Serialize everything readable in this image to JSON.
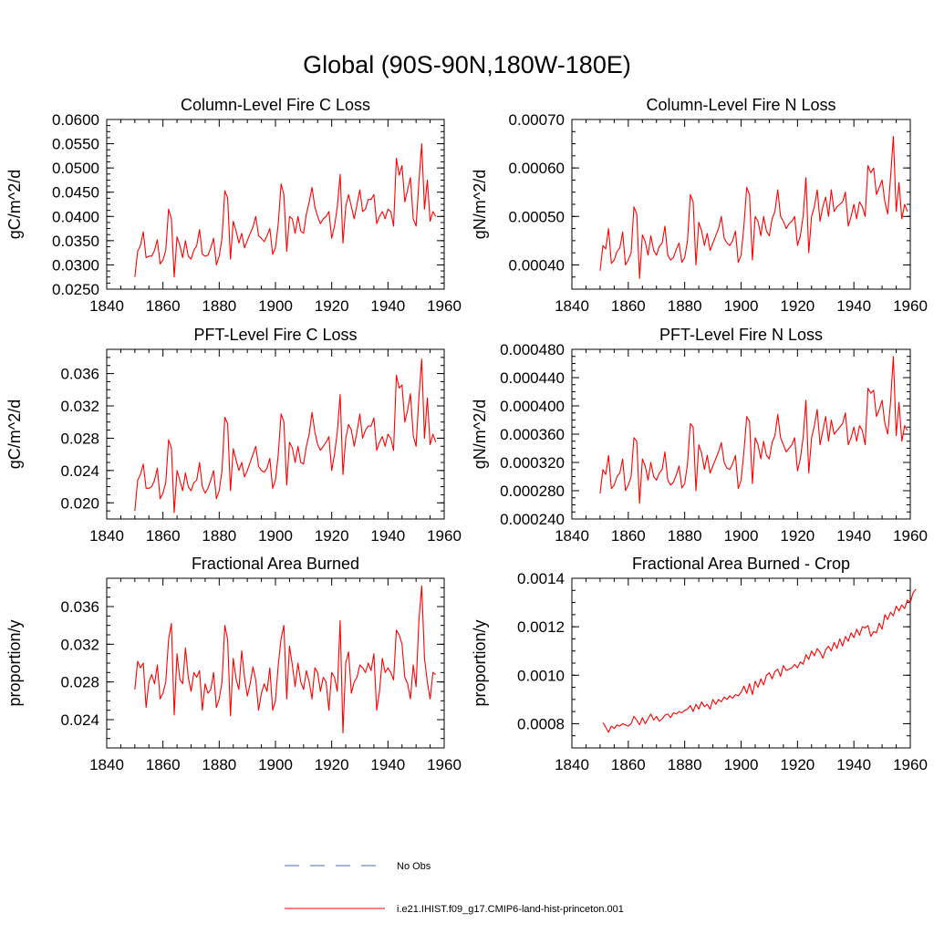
{
  "title": "Global (90S-90N,180W-180E)",
  "colors": {
    "series": "#ff0000",
    "obs": "#4a6ab8",
    "axis": "#000000"
  },
  "legend": [
    {
      "label": "No Obs",
      "style": "dashed",
      "color": "#4a6ab8"
    },
    {
      "label": "i.e21.IHIST.f09_g17.CMIP6-land-hist-princeton.001",
      "style": "solid",
      "color": "#ff0000"
    }
  ],
  "chart_data": [
    {
      "type": "line",
      "title": "Column-Level Fire C Loss",
      "ylabel": "gC/m^2/d",
      "xlim": [
        1840,
        1960
      ],
      "ylim": [
        0.025,
        0.06
      ],
      "xticks": [
        "1840",
        "1860",
        "1880",
        "1900",
        "1920",
        "1940",
        "1960"
      ],
      "yticks": [
        "0.0250",
        "0.0300",
        "0.0350",
        "0.0400",
        "0.0450",
        "0.0500",
        "0.0550",
        "0.0600"
      ],
      "x_start": 1850,
      "series": [
        {
          "values": [
            0.0275,
            0.0328,
            0.034,
            0.0368,
            0.0315,
            0.0318,
            0.0318,
            0.033,
            0.0352,
            0.0302,
            0.031,
            0.033,
            0.0415,
            0.0395,
            0.0275,
            0.0358,
            0.034,
            0.0315,
            0.035,
            0.0318,
            0.0312,
            0.033,
            0.034,
            0.0373,
            0.0322,
            0.0318,
            0.032,
            0.0335,
            0.0355,
            0.03,
            0.0318,
            0.0355,
            0.0453,
            0.0438,
            0.0312,
            0.039,
            0.037,
            0.0345,
            0.0365,
            0.0335,
            0.035,
            0.0365,
            0.0378,
            0.04,
            0.036,
            0.0355,
            0.0348,
            0.036,
            0.0375,
            0.0322,
            0.0335,
            0.0385,
            0.0467,
            0.0445,
            0.0328,
            0.04,
            0.0395,
            0.0365,
            0.04,
            0.037,
            0.0365,
            0.0405,
            0.043,
            0.046,
            0.042,
            0.04,
            0.0385,
            0.0395,
            0.04,
            0.041,
            0.0355,
            0.038,
            0.042,
            0.0487,
            0.0345,
            0.042,
            0.0445,
            0.042,
            0.0395,
            0.0425,
            0.0455,
            0.041,
            0.0415,
            0.0435,
            0.0435,
            0.0445,
            0.0385,
            0.04,
            0.041,
            0.0395,
            0.0415,
            0.041,
            0.038,
            0.052,
            0.0485,
            0.0505,
            0.043,
            0.0455,
            0.048,
            0.0395,
            0.038,
            0.047,
            0.055,
            0.0415,
            0.0475,
            0.039,
            0.041,
            0.04
          ]
        }
      ]
    },
    {
      "type": "line",
      "title": "Column-Level Fire N Loss",
      "ylabel": "gN/m^2/d",
      "xlim": [
        1840,
        1960
      ],
      "ylim": [
        0.00035,
        0.0007
      ],
      "xticks": [
        "1840",
        "1860",
        "1880",
        "1900",
        "1920",
        "1940",
        "1960"
      ],
      "yticks": [
        "0.00040",
        "0.00050",
        "0.00060",
        "0.00070"
      ],
      "x_start": 1850,
      "series": [
        {
          "values": [
            0.000388,
            0.00044,
            0.000433,
            0.000475,
            0.000403,
            0.00041,
            0.000428,
            0.000435,
            0.000468,
            0.0004,
            0.00041,
            0.000425,
            0.00052,
            0.000505,
            0.000372,
            0.000462,
            0.000448,
            0.00042,
            0.00046,
            0.00043,
            0.00042,
            0.000438,
            0.000445,
            0.00048,
            0.00042,
            0.00041,
            0.000415,
            0.000432,
            0.000445,
            0.000405,
            0.000415,
            0.00045,
            0.000545,
            0.00053,
            0.0004,
            0.000488,
            0.00047,
            0.00044,
            0.000465,
            0.00043,
            0.000445,
            0.00046,
            0.000475,
            0.0005,
            0.000455,
            0.000445,
            0.00044,
            0.00045,
            0.00047,
            0.000405,
            0.00042,
            0.00048,
            0.00056,
            0.000545,
            0.00041,
            0.0005,
            0.00049,
            0.00046,
            0.0005,
            0.00047,
            0.00046,
            0.000495,
            0.00051,
            0.000555,
            0.0005,
            0.00049,
            0.000475,
            0.000485,
            0.00049,
            0.0005,
            0.00044,
            0.00046,
            0.0005,
            0.00058,
            0.000425,
            0.0005,
            0.00052,
            0.000555,
            0.00049,
            0.00052,
            0.00054,
            0.0005,
            0.000555,
            0.00051,
            0.00052,
            0.000525,
            0.00053,
            0.00055,
            0.00048,
            0.0005,
            0.000525,
            0.000495,
            0.00053,
            0.00052,
            0.0005,
            0.000605,
            0.00059,
            0.0006,
            0.000545,
            0.00056,
            0.000575,
            0.00053,
            0.000505,
            0.00058,
            0.000665,
            0.00051,
            0.00057,
            0.000495,
            0.000525,
            0.00051
          ]
        }
      ]
    },
    {
      "type": "line",
      "title": "PFT-Level Fire C Loss",
      "ylabel": "gC/m^2/d",
      "xlim": [
        1840,
        1960
      ],
      "ylim": [
        0.018,
        0.039
      ],
      "xticks": [
        "1840",
        "1860",
        "1880",
        "1900",
        "1920",
        "1940",
        "1960"
      ],
      "yticks": [
        "0.020",
        "0.024",
        "0.028",
        "0.032",
        "0.036"
      ],
      "x_start": 1850,
      "series": [
        {
          "values": [
            0.019,
            0.0228,
            0.0235,
            0.0248,
            0.0218,
            0.0218,
            0.022,
            0.0228,
            0.0243,
            0.0205,
            0.0212,
            0.0225,
            0.0278,
            0.0268,
            0.0188,
            0.024,
            0.0228,
            0.0215,
            0.0237,
            0.022,
            0.0215,
            0.0225,
            0.0228,
            0.025,
            0.022,
            0.0212,
            0.0218,
            0.0228,
            0.024,
            0.0205,
            0.0215,
            0.024,
            0.0306,
            0.0298,
            0.0215,
            0.0267,
            0.0253,
            0.024,
            0.025,
            0.0232,
            0.024,
            0.025,
            0.026,
            0.027,
            0.0245,
            0.024,
            0.0238,
            0.0243,
            0.0255,
            0.0218,
            0.0228,
            0.026,
            0.031,
            0.03,
            0.0222,
            0.0275,
            0.0268,
            0.025,
            0.027,
            0.025,
            0.0248,
            0.027,
            0.0285,
            0.0312,
            0.0288,
            0.0272,
            0.0265,
            0.027,
            0.0275,
            0.0282,
            0.024,
            0.026,
            0.0288,
            0.0334,
            0.0235,
            0.028,
            0.0297,
            0.029,
            0.027,
            0.0288,
            0.031,
            0.028,
            0.029,
            0.0295,
            0.0295,
            0.0305,
            0.0265,
            0.0275,
            0.0282,
            0.027,
            0.0285,
            0.028,
            0.0265,
            0.0358,
            0.0342,
            0.0346,
            0.03,
            0.0315,
            0.0335,
            0.0283,
            0.027,
            0.033,
            0.0378,
            0.028,
            0.033,
            0.0272,
            0.0285,
            0.0275
          ]
        }
      ]
    },
    {
      "type": "line",
      "title": "PFT-Level Fire N Loss",
      "ylabel": "gN/m^2/d",
      "xlim": [
        1840,
        1960
      ],
      "ylim": [
        0.00024,
        0.00048
      ],
      "xticks": [
        "1840",
        "1860",
        "1880",
        "1900",
        "1920",
        "1940",
        "1960"
      ],
      "yticks": [
        "0.000240",
        "0.000280",
        "0.000320",
        "0.000360",
        "0.000400",
        "0.000440",
        "0.000480"
      ],
      "x_start": 1850,
      "series": [
        {
          "values": [
            0.000276,
            0.00031,
            0.000303,
            0.00033,
            0.000283,
            0.000288,
            0.0003,
            0.000305,
            0.000325,
            0.00028,
            0.000288,
            0.0003,
            0.000355,
            0.00035,
            0.000262,
            0.000325,
            0.000315,
            0.000295,
            0.00032,
            0.0003,
            0.000295,
            0.000305,
            0.00031,
            0.000335,
            0.000295,
            0.000288,
            0.000292,
            0.000302,
            0.000315,
            0.000284,
            0.00029,
            0.000318,
            0.000375,
            0.00037,
            0.00028,
            0.000345,
            0.000333,
            0.00031,
            0.00033,
            0.000305,
            0.000315,
            0.000325,
            0.000335,
            0.000348,
            0.00032,
            0.000312,
            0.00031,
            0.000318,
            0.00033,
            0.000283,
            0.000295,
            0.000335,
            0.000385,
            0.000378,
            0.00029,
            0.000355,
            0.000345,
            0.000325,
            0.00035,
            0.00033,
            0.000325,
            0.000348,
            0.000358,
            0.000388,
            0.000355,
            0.000345,
            0.000335,
            0.00034,
            0.000345,
            0.000355,
            0.000308,
            0.000325,
            0.000355,
            0.000408,
            0.000305,
            0.000355,
            0.000372,
            0.000395,
            0.000345,
            0.000365,
            0.000385,
            0.00035,
            0.00038,
            0.00036,
            0.000365,
            0.00037,
            0.000375,
            0.00039,
            0.000345,
            0.000355,
            0.00037,
            0.00035,
            0.000372,
            0.000365,
            0.000345,
            0.000425,
            0.000418,
            0.000422,
            0.000385,
            0.000395,
            0.000408,
            0.000375,
            0.00036,
            0.000405,
            0.00047,
            0.000358,
            0.000405,
            0.00035,
            0.000372,
            0.000365
          ]
        }
      ]
    },
    {
      "type": "line",
      "title": "Fractional Area Burned",
      "ylabel": "proportion/y",
      "xlim": [
        1840,
        1960
      ],
      "ylim": [
        0.021,
        0.039
      ],
      "xticks": [
        "1840",
        "1860",
        "1880",
        "1900",
        "1920",
        "1940",
        "1960"
      ],
      "yticks": [
        "0.024",
        "0.028",
        "0.032",
        "0.036"
      ],
      "x_start": 1850,
      "series": [
        {
          "values": [
            0.0272,
            0.0302,
            0.0295,
            0.03,
            0.0253,
            0.028,
            0.0288,
            0.0278,
            0.0298,
            0.0262,
            0.0268,
            0.028,
            0.0325,
            0.0342,
            0.0245,
            0.031,
            0.0283,
            0.0278,
            0.0316,
            0.0285,
            0.027,
            0.029,
            0.0285,
            0.0292,
            0.025,
            0.0278,
            0.0268,
            0.0272,
            0.029,
            0.0253,
            0.0262,
            0.028,
            0.034,
            0.0325,
            0.0244,
            0.0305,
            0.0283,
            0.0272,
            0.0313,
            0.0285,
            0.0265,
            0.0278,
            0.0296,
            0.0282,
            0.025,
            0.0268,
            0.0278,
            0.027,
            0.0295,
            0.025,
            0.026,
            0.0298,
            0.0326,
            0.034,
            0.0262,
            0.0318,
            0.0298,
            0.0275,
            0.03,
            0.028,
            0.0272,
            0.0292,
            0.028,
            0.0262,
            0.0295,
            0.029,
            0.027,
            0.0285,
            0.028,
            0.025,
            0.029,
            0.0285,
            0.027,
            0.0345,
            0.0226,
            0.03,
            0.0312,
            0.0268,
            0.028,
            0.0285,
            0.0298,
            0.0295,
            0.029,
            0.03,
            0.0292,
            0.031,
            0.025,
            0.027,
            0.0305,
            0.029,
            0.0295,
            0.029,
            0.0282,
            0.0335,
            0.033,
            0.032,
            0.0285,
            0.0278,
            0.0262,
            0.0298,
            0.0275,
            0.0345,
            0.0382,
            0.0305,
            0.028,
            0.0262,
            0.029,
            0.0288
          ]
        }
      ]
    },
    {
      "type": "line",
      "title": "Fractional Area Burned - Crop",
      "ylabel": "proportion/y",
      "xlim": [
        1840,
        1960
      ],
      "ylim": [
        0.0007,
        0.0014
      ],
      "xticks": [
        "1840",
        "1860",
        "1880",
        "1900",
        "1920",
        "1940",
        "1960"
      ],
      "yticks": [
        "0.0008",
        "0.0010",
        "0.0012",
        "0.0014"
      ],
      "x_start": 1851,
      "series": [
        {
          "values": [
            0.000805,
            0.000785,
            0.000765,
            0.00079,
            0.00078,
            0.000795,
            0.00079,
            0.0008,
            0.000795,
            0.00079,
            0.0008,
            0.00083,
            0.000815,
            0.000795,
            0.000825,
            0.0008,
            0.00082,
            0.00084,
            0.000815,
            0.00083,
            0.00081,
            0.00082,
            0.000835,
            0.00084,
            0.000825,
            0.000845,
            0.00084,
            0.00085,
            0.000845,
            0.000855,
            0.00086,
            0.000875,
            0.00085,
            0.00088,
            0.00086,
            0.00089,
            0.00087,
            0.00088,
            0.00086,
            0.0009,
            0.00088,
            0.0009,
            0.00089,
            0.00091,
            0.0009,
            0.000915,
            0.000905,
            0.00092,
            0.000915,
            0.00093,
            0.000955,
            0.000925,
            0.000965,
            0.00092,
            0.000975,
            0.00095,
            0.000985,
            0.00096,
            0.001,
            0.00101,
            0.000985,
            0.001015,
            0.001025,
            0.000995,
            0.00104,
            0.00102,
            0.001025,
            0.00103,
            0.001045,
            0.00103,
            0.001055,
            0.001045,
            0.001085,
            0.001065,
            0.0011,
            0.00108,
            0.00111,
            0.001095,
            0.00107,
            0.001105,
            0.00112,
            0.0011,
            0.001135,
            0.00111,
            0.00115,
            0.00112,
            0.00116,
            0.00114,
            0.001175,
            0.001155,
            0.00119,
            0.001165,
            0.0012,
            0.001195,
            0.001205,
            0.00116,
            0.00118,
            0.001175,
            0.001215,
            0.00119,
            0.00125,
            0.00123,
            0.00126,
            0.001245,
            0.001285,
            0.001265,
            0.00129,
            0.001275,
            0.00131,
            0.0013,
            0.00134,
            0.001355
          ]
        }
      ]
    }
  ]
}
